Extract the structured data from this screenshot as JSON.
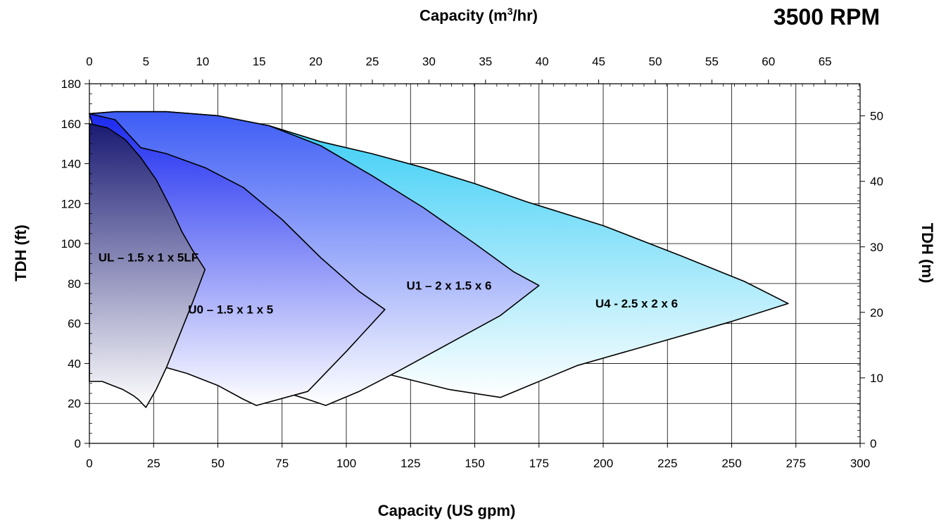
{
  "chart_data": {
    "type": "area",
    "rpm_label": "3500 RPM",
    "top_axis": {
      "label_prefix": "Capacity (m",
      "label_sup": "3",
      "label_suffix": "/hr)",
      "ticks": [
        "0",
        "5",
        "10",
        "15",
        "20",
        "25",
        "30",
        "35",
        "40",
        "45",
        "50",
        "55",
        "60",
        "65"
      ],
      "range": [
        0,
        68.1
      ]
    },
    "bottom_axis": {
      "label": "Capacity (US gpm)",
      "ticks": [
        "0",
        "25",
        "50",
        "75",
        "100",
        "125",
        "150",
        "175",
        "200",
        "225",
        "250",
        "275",
        "300"
      ],
      "range": [
        0,
        300
      ]
    },
    "left_axis": {
      "label": "TDH (ft)",
      "ticks": [
        "0",
        "20",
        "40",
        "60",
        "80",
        "100",
        "120",
        "140",
        "160",
        "180"
      ],
      "range": [
        0,
        180
      ]
    },
    "right_axis": {
      "label": "TDH (m)",
      "ticks": [
        "0",
        "10",
        "20",
        "30",
        "40",
        "50"
      ],
      "range": [
        0,
        54.9
      ]
    },
    "grid": true,
    "series": [
      {
        "name": "U4 - 2.5 x 2 x 6",
        "top_color": "#33ccf5",
        "bottom_color": "#ffffff",
        "label_at": [
          213,
          68
        ],
        "outline": [
          [
            0,
            165
          ],
          [
            10,
            166
          ],
          [
            30,
            166
          ],
          [
            50,
            164
          ],
          [
            70,
            159
          ],
          [
            90,
            151
          ],
          [
            110,
            145
          ],
          [
            130,
            138
          ],
          [
            150,
            130
          ],
          [
            170,
            121
          ],
          [
            200,
            109
          ],
          [
            230,
            94
          ],
          [
            255,
            81
          ],
          [
            272,
            70
          ],
          [
            250,
            61
          ],
          [
            220,
            50
          ],
          [
            190,
            39
          ],
          [
            160,
            23
          ],
          [
            140,
            27
          ],
          [
            115,
            35
          ],
          [
            100,
            37
          ]
        ]
      },
      {
        "name": "U1 – 2 x 1.5 x 6",
        "top_color": "#3d5cf5",
        "bottom_color": "#ffffff",
        "label_at": [
          140,
          77
        ],
        "outline": [
          [
            0,
            165
          ],
          [
            10,
            166
          ],
          [
            30,
            166
          ],
          [
            50,
            164
          ],
          [
            70,
            159
          ],
          [
            90,
            149
          ],
          [
            110,
            134
          ],
          [
            130,
            118
          ],
          [
            150,
            100
          ],
          [
            165,
            86
          ],
          [
            175,
            79
          ],
          [
            160,
            64
          ],
          [
            140,
            50
          ],
          [
            120,
            36
          ],
          [
            105,
            26
          ],
          [
            92,
            19
          ],
          [
            85,
            22
          ],
          [
            75,
            26
          ],
          [
            60,
            32
          ]
        ]
      },
      {
        "name": "U0 – 1.5 x 1 x 5",
        "top_color": "#1a29f0",
        "bottom_color": "#ffffff",
        "label_at": [
          55,
          65
        ],
        "outline": [
          [
            0,
            165
          ],
          [
            10,
            162
          ],
          [
            20,
            148
          ],
          [
            30,
            145
          ],
          [
            45,
            138
          ],
          [
            60,
            128
          ],
          [
            75,
            112
          ],
          [
            90,
            93
          ],
          [
            105,
            76
          ],
          [
            115,
            67
          ],
          [
            100,
            46
          ],
          [
            85,
            26
          ],
          [
            65,
            19
          ],
          [
            60,
            22
          ],
          [
            50,
            29
          ],
          [
            38,
            35
          ],
          [
            27,
            39
          ]
        ]
      },
      {
        "name": "UL – 1.5 x 1 x 5LF",
        "top_color": "#1a1a73",
        "bottom_color": "#ffffff",
        "label_at": [
          23,
          91
        ],
        "outline": [
          [
            0,
            160
          ],
          [
            7,
            158
          ],
          [
            14,
            152
          ],
          [
            20,
            143
          ],
          [
            26,
            132
          ],
          [
            32,
            117
          ],
          [
            36,
            106
          ],
          [
            40,
            97
          ],
          [
            45,
            87
          ],
          [
            40,
            70
          ],
          [
            35,
            54
          ],
          [
            30,
            38
          ],
          [
            26,
            27
          ],
          [
            22,
            18
          ],
          [
            19,
            22
          ],
          [
            17,
            24
          ],
          [
            13,
            27
          ],
          [
            9,
            29
          ],
          [
            5,
            31
          ],
          [
            0,
            31
          ]
        ]
      }
    ]
  }
}
